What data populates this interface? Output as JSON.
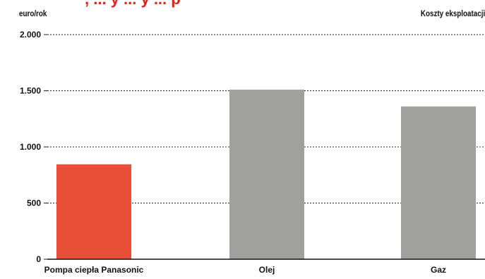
{
  "chart_data": {
    "type": "bar",
    "title_fragment": ", ... y ... y ... p",
    "ylabel": "euro/rok",
    "legend_label": "Koszty eksploatacji*",
    "categories": [
      "Pompa ciepła Panasonic",
      "Olej",
      "Gaz"
    ],
    "values": [
      845,
      1510,
      1360
    ],
    "ylim": [
      0,
      2000
    ],
    "yticks": [
      0,
      500,
      1000,
      1500,
      2000
    ],
    "ytick_labels": [
      "0",
      "500",
      "1.000",
      "1.500",
      "2.000"
    ],
    "grid": true,
    "legend_position": "top-right",
    "colors": {
      "highlight": "#e8503a",
      "default": "#a0a09e",
      "grid": "#222222"
    }
  }
}
